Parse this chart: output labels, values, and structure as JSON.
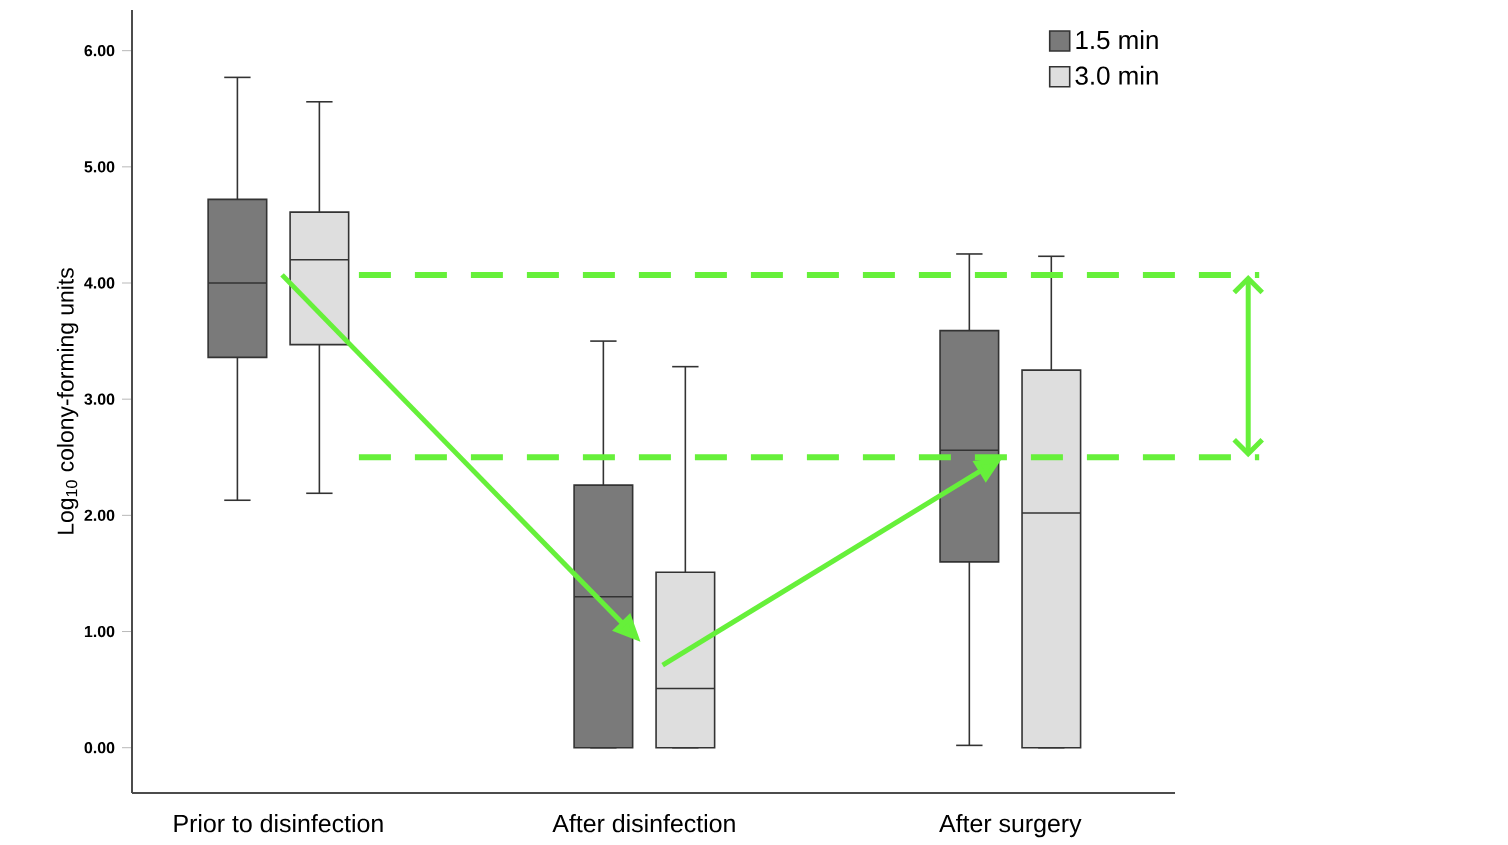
{
  "chart_data": {
    "type": "box",
    "ylabel": "Log$_{10}$ colony-forming units",
    "categories": [
      "Prior to disinfection",
      "After disinfection",
      "After surgery"
    ],
    "series": [
      {
        "name": "1.5 min",
        "color": "#7a7a7a",
        "boxes": [
          {
            "low": 2.13,
            "q1": 3.36,
            "median": 4.0,
            "q3": 4.72,
            "high": 5.77
          },
          {
            "low": 0,
            "q1": 0,
            "median": 1.3,
            "q3": 2.26,
            "high": 3.5
          },
          {
            "low": 0.02,
            "q1": 1.6,
            "median": 2.56,
            "q3": 3.59,
            "high": 4.25
          }
        ]
      },
      {
        "name": "3.0 min",
        "color": "#dedede",
        "boxes": [
          {
            "low": 2.19,
            "q1": 3.47,
            "median": 4.2,
            "q3": 4.61,
            "high": 5.56
          },
          {
            "low": 0,
            "q1": 0,
            "median": 0.51,
            "q3": 1.51,
            "high": 3.28
          },
          {
            "low": 0,
            "q1": 0,
            "median": 2.02,
            "q3": 3.25,
            "high": 4.23
          }
        ]
      }
    ],
    "ylim": [
      -0.39,
      6.35
    ],
    "yticks": [
      {
        "value": 0,
        "label": "0.00"
      },
      {
        "value": 1,
        "label": "1.00"
      },
      {
        "value": 2,
        "label": "2.00"
      },
      {
        "value": 3,
        "label": "3.00"
      },
      {
        "value": 4,
        "label": "4.00"
      },
      {
        "value": 5,
        "label": "5.00"
      },
      {
        "value": 6,
        "label": "6.00"
      }
    ],
    "ref_lines": [
      {
        "axis": "y",
        "value": 4.07,
        "color": "#66f03a",
        "line_style": "dashed"
      },
      {
        "axis": "y",
        "value": 2.5,
        "color": "#66f03a",
        "line_style": "dashed"
      }
    ],
    "grid": false,
    "legend": "top right"
  }
}
